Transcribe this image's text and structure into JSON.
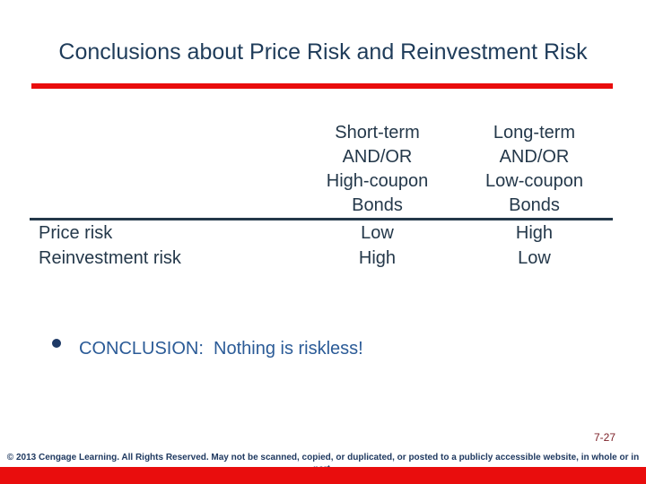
{
  "slide": {
    "title": "Conclusions about Price Risk and Reinvestment Risk",
    "table": {
      "column_headers": [
        "Short-term\nAND/OR\nHigh-coupon\nBonds",
        "Long-term\nAND/OR\nLow-coupon\nBonds"
      ],
      "rows": [
        {
          "label": "Price risk",
          "values": [
            "Low",
            "High"
          ]
        },
        {
          "label": "Reinvestment risk",
          "values": [
            "High",
            "Low"
          ]
        }
      ]
    },
    "bullet": {
      "text": "CONCLUSION:  Nothing is riskless!"
    },
    "footer": {
      "page_number": "7-27",
      "copyright": "© 2013 Cengage Learning. All Rights Reserved. May not be scanned, copied, or duplicated, or posted to a publicly accessible website, in whole or in part."
    },
    "colors": {
      "accent_red": "#e90d0d",
      "title_navy": "#1f3c5a",
      "table_navy": "#24384a",
      "conclusion_blue": "#2b5b97",
      "bullet_navy": "#1e3a66",
      "page_number_maroon": "#7c2128",
      "footer_navy": "#1f3960"
    }
  }
}
